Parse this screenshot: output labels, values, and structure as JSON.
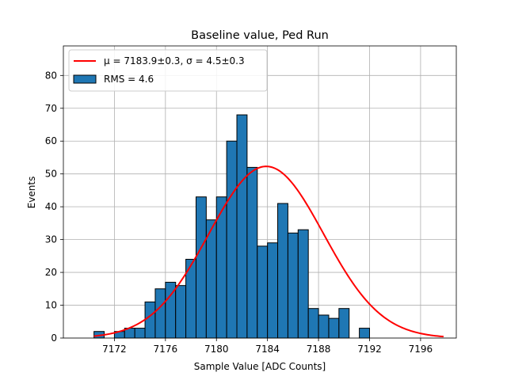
{
  "chart_data": {
    "type": "bar",
    "title": "Baseline value, Ped Run",
    "xlabel": "Sample Value [ADC Counts]",
    "ylabel": "Events",
    "xlim": [
      7168.0,
      7198.8
    ],
    "ylim": [
      0,
      89
    ],
    "xticks": [
      7172,
      7176,
      7180,
      7184,
      7188,
      7192,
      7196
    ],
    "yticks": [
      0,
      10,
      20,
      30,
      40,
      50,
      60,
      70,
      80
    ],
    "grid": true,
    "legend_position": "top-left",
    "colors": {
      "bars": "#1f77b4",
      "fit": "#ff0000",
      "edge": "#000000"
    },
    "histogram": {
      "name": "RMS = 4.6",
      "bin_width": 0.8,
      "bins": [
        {
          "x": 7170.4,
          "count": 2
        },
        {
          "x": 7171.2,
          "count": 0
        },
        {
          "x": 7172.0,
          "count": 2
        },
        {
          "x": 7172.8,
          "count": 3
        },
        {
          "x": 7173.6,
          "count": 3
        },
        {
          "x": 7174.4,
          "count": 11
        },
        {
          "x": 7175.2,
          "count": 15
        },
        {
          "x": 7176.0,
          "count": 17
        },
        {
          "x": 7176.8,
          "count": 16
        },
        {
          "x": 7177.6,
          "count": 24
        },
        {
          "x": 7178.4,
          "count": 43
        },
        {
          "x": 7179.2,
          "count": 36
        },
        {
          "x": 7180.0,
          "count": 43
        },
        {
          "x": 7180.8,
          "count": 60
        },
        {
          "x": 7181.6,
          "count": 68
        },
        {
          "x": 7182.4,
          "count": 52
        },
        {
          "x": 7183.2,
          "count": 28
        },
        {
          "x": 7184.0,
          "count": 29
        },
        {
          "x": 7184.8,
          "count": 41
        },
        {
          "x": 7185.6,
          "count": 32
        },
        {
          "x": 7186.4,
          "count": 33
        },
        {
          "x": 7187.2,
          "count": 9
        },
        {
          "x": 7188.0,
          "count": 7
        },
        {
          "x": 7188.8,
          "count": 6
        },
        {
          "x": 7189.6,
          "count": 9
        },
        {
          "x": 7190.4,
          "count": 0
        },
        {
          "x": 7191.2,
          "count": 3
        }
      ]
    },
    "fit": {
      "name": "μ = 7183.9±0.3, σ = 4.5±0.3",
      "mu": 7183.9,
      "sigma": 4.5,
      "amplitude": 52.3,
      "x_range": [
        7170.4,
        7197.8
      ]
    }
  }
}
